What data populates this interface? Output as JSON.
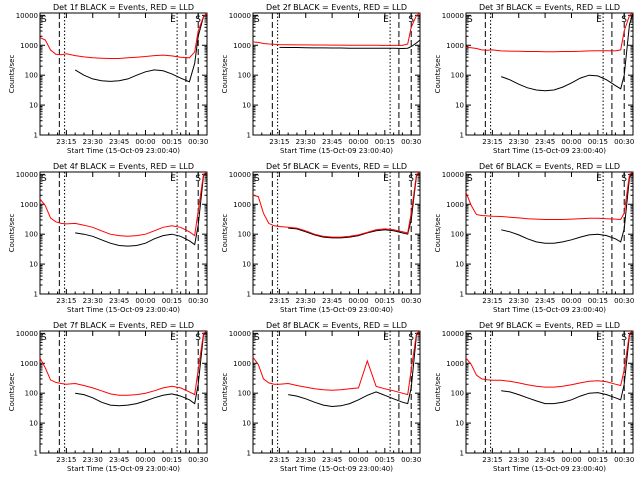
{
  "xlabel": "Start Time (15-Oct-09 23:00:40)",
  "ylabel": "Counts/sec",
  "x_tick_labels": [
    "23:15",
    "23:30",
    "23:45",
    "00:00",
    "00:15",
    "00:30"
  ],
  "y_tick_labels": [
    "1",
    "10",
    "100",
    "1000",
    "10000"
  ],
  "flags": {
    "start": "S",
    "end": "E"
  },
  "colors": {
    "events": "#000000",
    "lld": "#ff0000"
  },
  "chart_data": [
    {
      "type": "line",
      "title": "Det 1f BLACK = Events, RED = LLD",
      "x": [
        "23:00",
        "23:03",
        "23:06",
        "23:09",
        "23:12",
        "23:15",
        "23:20",
        "23:25",
        "23:30",
        "23:35",
        "23:40",
        "23:45",
        "23:50",
        "23:55",
        "00:00",
        "00:05",
        "00:10",
        "00:15",
        "00:20",
        "00:25",
        "00:28",
        "00:30",
        "00:33",
        "00:35"
      ],
      "series": [
        {
          "name": "Events",
          "values": [
            null,
            null,
            null,
            null,
            null,
            null,
            150,
            100,
            75,
            65,
            62,
            65,
            75,
            100,
            130,
            150,
            140,
            110,
            80,
            60,
            250,
            2000,
            9000,
            12000
          ]
        },
        {
          "name": "LLD",
          "values": [
            1800,
            1500,
            700,
            500,
            480,
            520,
            450,
            410,
            380,
            370,
            360,
            360,
            380,
            400,
            420,
            450,
            470,
            440,
            400,
            380,
            600,
            3000,
            9000,
            12000
          ]
        }
      ],
      "ylim": [
        1,
        12000
      ],
      "yscale": "log"
    },
    {
      "type": "line",
      "title": "Det 2f BLACK = Events, RED = LLD",
      "x": [
        "23:00",
        "23:03",
        "23:06",
        "23:09",
        "23:12",
        "23:15",
        "23:20",
        "23:25",
        "23:30",
        "23:35",
        "23:40",
        "23:45",
        "23:50",
        "23:55",
        "00:00",
        "00:05",
        "00:10",
        "00:15",
        "00:20",
        "00:25",
        "00:28",
        "00:30",
        "00:33",
        "00:35"
      ],
      "series": [
        {
          "name": "Events",
          "values": [
            null,
            null,
            null,
            null,
            null,
            850,
            840,
            840,
            830,
            820,
            820,
            810,
            810,
            800,
            800,
            800,
            790,
            790,
            790,
            780,
            800,
            900,
            1200,
            1500
          ]
        },
        {
          "name": "LLD",
          "values": [
            1300,
            1250,
            1150,
            1100,
            1080,
            1050,
            1040,
            1030,
            1030,
            1020,
            1020,
            1010,
            1010,
            1000,
            1000,
            1000,
            1000,
            990,
            990,
            990,
            1100,
            4000,
            10000,
            12000
          ]
        }
      ],
      "ylim": [
        1,
        12000
      ],
      "yscale": "log"
    },
    {
      "type": "line",
      "title": "Det 3f BLACK = Events, RED = LLD",
      "x": [
        "23:00",
        "23:03",
        "23:06",
        "23:09",
        "23:12",
        "23:15",
        "23:20",
        "23:25",
        "23:30",
        "23:35",
        "23:40",
        "23:45",
        "23:50",
        "23:55",
        "00:00",
        "00:05",
        "00:10",
        "00:15",
        "00:20",
        "00:25",
        "00:28",
        "00:30",
        "00:33",
        "00:35"
      ],
      "series": [
        {
          "name": "Events",
          "values": [
            null,
            null,
            null,
            null,
            null,
            null,
            90,
            70,
            50,
            38,
            32,
            30,
            32,
            40,
            55,
            80,
            100,
            95,
            70,
            45,
            35,
            100,
            5000,
            12000
          ]
        },
        {
          "name": "LLD",
          "values": [
            850,
            830,
            780,
            700,
            680,
            700,
            650,
            640,
            630,
            620,
            620,
            610,
            610,
            620,
            620,
            630,
            650,
            660,
            660,
            650,
            700,
            3000,
            10000,
            12000
          ]
        }
      ],
      "ylim": [
        1,
        12000
      ],
      "yscale": "log"
    },
    {
      "type": "line",
      "title": "Det 4f BLACK = Events, RED = LLD",
      "x": [
        "23:00",
        "23:03",
        "23:06",
        "23:09",
        "23:12",
        "23:15",
        "23:20",
        "23:25",
        "23:30",
        "23:35",
        "23:40",
        "23:45",
        "23:50",
        "23:55",
        "00:00",
        "00:05",
        "00:10",
        "00:15",
        "00:20",
        "00:25",
        "00:28",
        "00:30",
        "00:33",
        "00:35"
      ],
      "series": [
        {
          "name": "Events",
          "values": [
            null,
            null,
            null,
            null,
            null,
            null,
            110,
            100,
            85,
            65,
            50,
            42,
            40,
            42,
            50,
            70,
            90,
            100,
            85,
            60,
            45,
            200,
            9000,
            12000
          ]
        },
        {
          "name": "LLD",
          "values": [
            1500,
            900,
            350,
            260,
            230,
            220,
            230,
            200,
            170,
            130,
            100,
            90,
            85,
            90,
            100,
            130,
            170,
            190,
            170,
            120,
            90,
            600,
            10000,
            12000
          ]
        }
      ],
      "ylim": [
        1,
        12000
      ],
      "yscale": "log"
    },
    {
      "type": "line",
      "title": "Det 5f BLACK = Events, RED = LLD",
      "x": [
        "23:00",
        "23:03",
        "23:06",
        "23:09",
        "23:12",
        "23:15",
        "23:20",
        "23:25",
        "23:30",
        "23:35",
        "23:40",
        "23:45",
        "23:50",
        "23:55",
        "00:00",
        "00:05",
        "00:10",
        "00:15",
        "00:20",
        "00:25",
        "00:28",
        "00:30",
        "00:33",
        "00:35"
      ],
      "series": [
        {
          "name": "Events",
          "values": [
            null,
            null,
            null,
            null,
            null,
            null,
            160,
            150,
            120,
            95,
            80,
            75,
            75,
            80,
            90,
            110,
            130,
            140,
            130,
            110,
            100,
            300,
            9000,
            12000
          ]
        },
        {
          "name": "LLD",
          "values": [
            2000,
            1800,
            500,
            230,
            190,
            180,
            170,
            160,
            130,
            100,
            85,
            80,
            80,
            85,
            95,
            115,
            140,
            150,
            140,
            120,
            110,
            500,
            10000,
            12000
          ]
        }
      ],
      "ylim": [
        1,
        12000
      ],
      "yscale": "log"
    },
    {
      "type": "line",
      "title": "Det 6f BLACK = Events, RED = LLD",
      "x": [
        "23:00",
        "23:03",
        "23:06",
        "23:09",
        "23:12",
        "23:15",
        "23:20",
        "23:25",
        "23:30",
        "23:35",
        "23:40",
        "23:45",
        "23:50",
        "23:55",
        "00:00",
        "00:05",
        "00:10",
        "00:15",
        "00:20",
        "00:25",
        "00:28",
        "00:30",
        "00:33",
        "00:35"
      ],
      "series": [
        {
          "name": "Events",
          "values": [
            null,
            null,
            null,
            null,
            null,
            null,
            140,
            120,
            95,
            70,
            55,
            50,
            50,
            55,
            65,
            80,
            95,
            100,
            90,
            70,
            55,
            150,
            8000,
            12000
          ]
        },
        {
          "name": "LLD",
          "values": [
            2500,
            900,
            450,
            420,
            410,
            400,
            390,
            370,
            350,
            330,
            320,
            310,
            310,
            310,
            320,
            330,
            340,
            340,
            330,
            320,
            310,
            500,
            10000,
            12000
          ]
        }
      ],
      "ylim": [
        1,
        12000
      ],
      "yscale": "log"
    },
    {
      "type": "line",
      "title": "Det 7f BLACK = Events, RED = LLD",
      "x": [
        "23:00",
        "23:03",
        "23:06",
        "23:09",
        "23:12",
        "23:15",
        "23:20",
        "23:25",
        "23:30",
        "23:35",
        "23:40",
        "23:45",
        "23:50",
        "23:55",
        "00:00",
        "00:05",
        "00:10",
        "00:15",
        "00:20",
        "00:25",
        "00:28",
        "00:30",
        "00:33",
        "00:35"
      ],
      "series": [
        {
          "name": "Events",
          "values": [
            null,
            null,
            null,
            null,
            null,
            null,
            100,
            90,
            70,
            50,
            40,
            38,
            40,
            45,
            55,
            70,
            85,
            95,
            80,
            60,
            45,
            200,
            9000,
            12000
          ]
        },
        {
          "name": "LLD",
          "values": [
            1500,
            700,
            280,
            230,
            210,
            200,
            210,
            180,
            150,
            120,
            95,
            85,
            85,
            90,
            100,
            120,
            150,
            170,
            150,
            110,
            90,
            600,
            10000,
            12000
          ]
        }
      ],
      "ylim": [
        1,
        12000
      ],
      "yscale": "log"
    },
    {
      "type": "line",
      "title": "Det 8f BLACK = Events, RED = LLD",
      "x": [
        "23:00",
        "23:03",
        "23:06",
        "23:09",
        "23:12",
        "23:15",
        "23:20",
        "23:25",
        "23:30",
        "23:35",
        "23:40",
        "23:45",
        "23:50",
        "23:55",
        "00:00",
        "00:05",
        "00:10",
        "00:15",
        "00:20",
        "00:25",
        "00:28",
        "00:30",
        "00:33",
        "00:35"
      ],
      "series": [
        {
          "name": "Events",
          "values": [
            null,
            null,
            null,
            null,
            null,
            null,
            90,
            80,
            65,
            50,
            40,
            36,
            38,
            45,
            60,
            85,
            110,
            85,
            65,
            50,
            45,
            150,
            9000,
            12000
          ]
        },
        {
          "name": "LLD",
          "values": [
            1600,
            900,
            300,
            220,
            200,
            200,
            210,
            180,
            160,
            140,
            130,
            125,
            130,
            140,
            150,
            1200,
            170,
            140,
            120,
            100,
            90,
            600,
            10000,
            12000
          ]
        }
      ],
      "ylim": [
        1,
        12000
      ],
      "yscale": "log"
    },
    {
      "type": "line",
      "title": "Det 9f BLACK = Events, RED = LLD",
      "x": [
        "23:00",
        "23:03",
        "23:06",
        "23:09",
        "23:12",
        "23:15",
        "23:20",
        "23:25",
        "23:30",
        "23:35",
        "23:40",
        "23:45",
        "23:50",
        "23:55",
        "00:00",
        "00:05",
        "00:10",
        "00:15",
        "00:20",
        "00:25",
        "00:28",
        "00:30",
        "00:33",
        "00:35"
      ],
      "series": [
        {
          "name": "Events",
          "values": [
            null,
            null,
            null,
            null,
            null,
            null,
            120,
            110,
            90,
            70,
            55,
            45,
            45,
            50,
            60,
            80,
            100,
            105,
            90,
            70,
            60,
            200,
            9000,
            12000
          ]
        },
        {
          "name": "LLD",
          "values": [
            1500,
            900,
            400,
            300,
            280,
            270,
            270,
            250,
            220,
            190,
            170,
            160,
            160,
            170,
            190,
            220,
            250,
            260,
            240,
            200,
            180,
            600,
            10000,
            12000
          ]
        }
      ],
      "ylim": [
        1,
        12000
      ],
      "yscale": "log"
    }
  ]
}
